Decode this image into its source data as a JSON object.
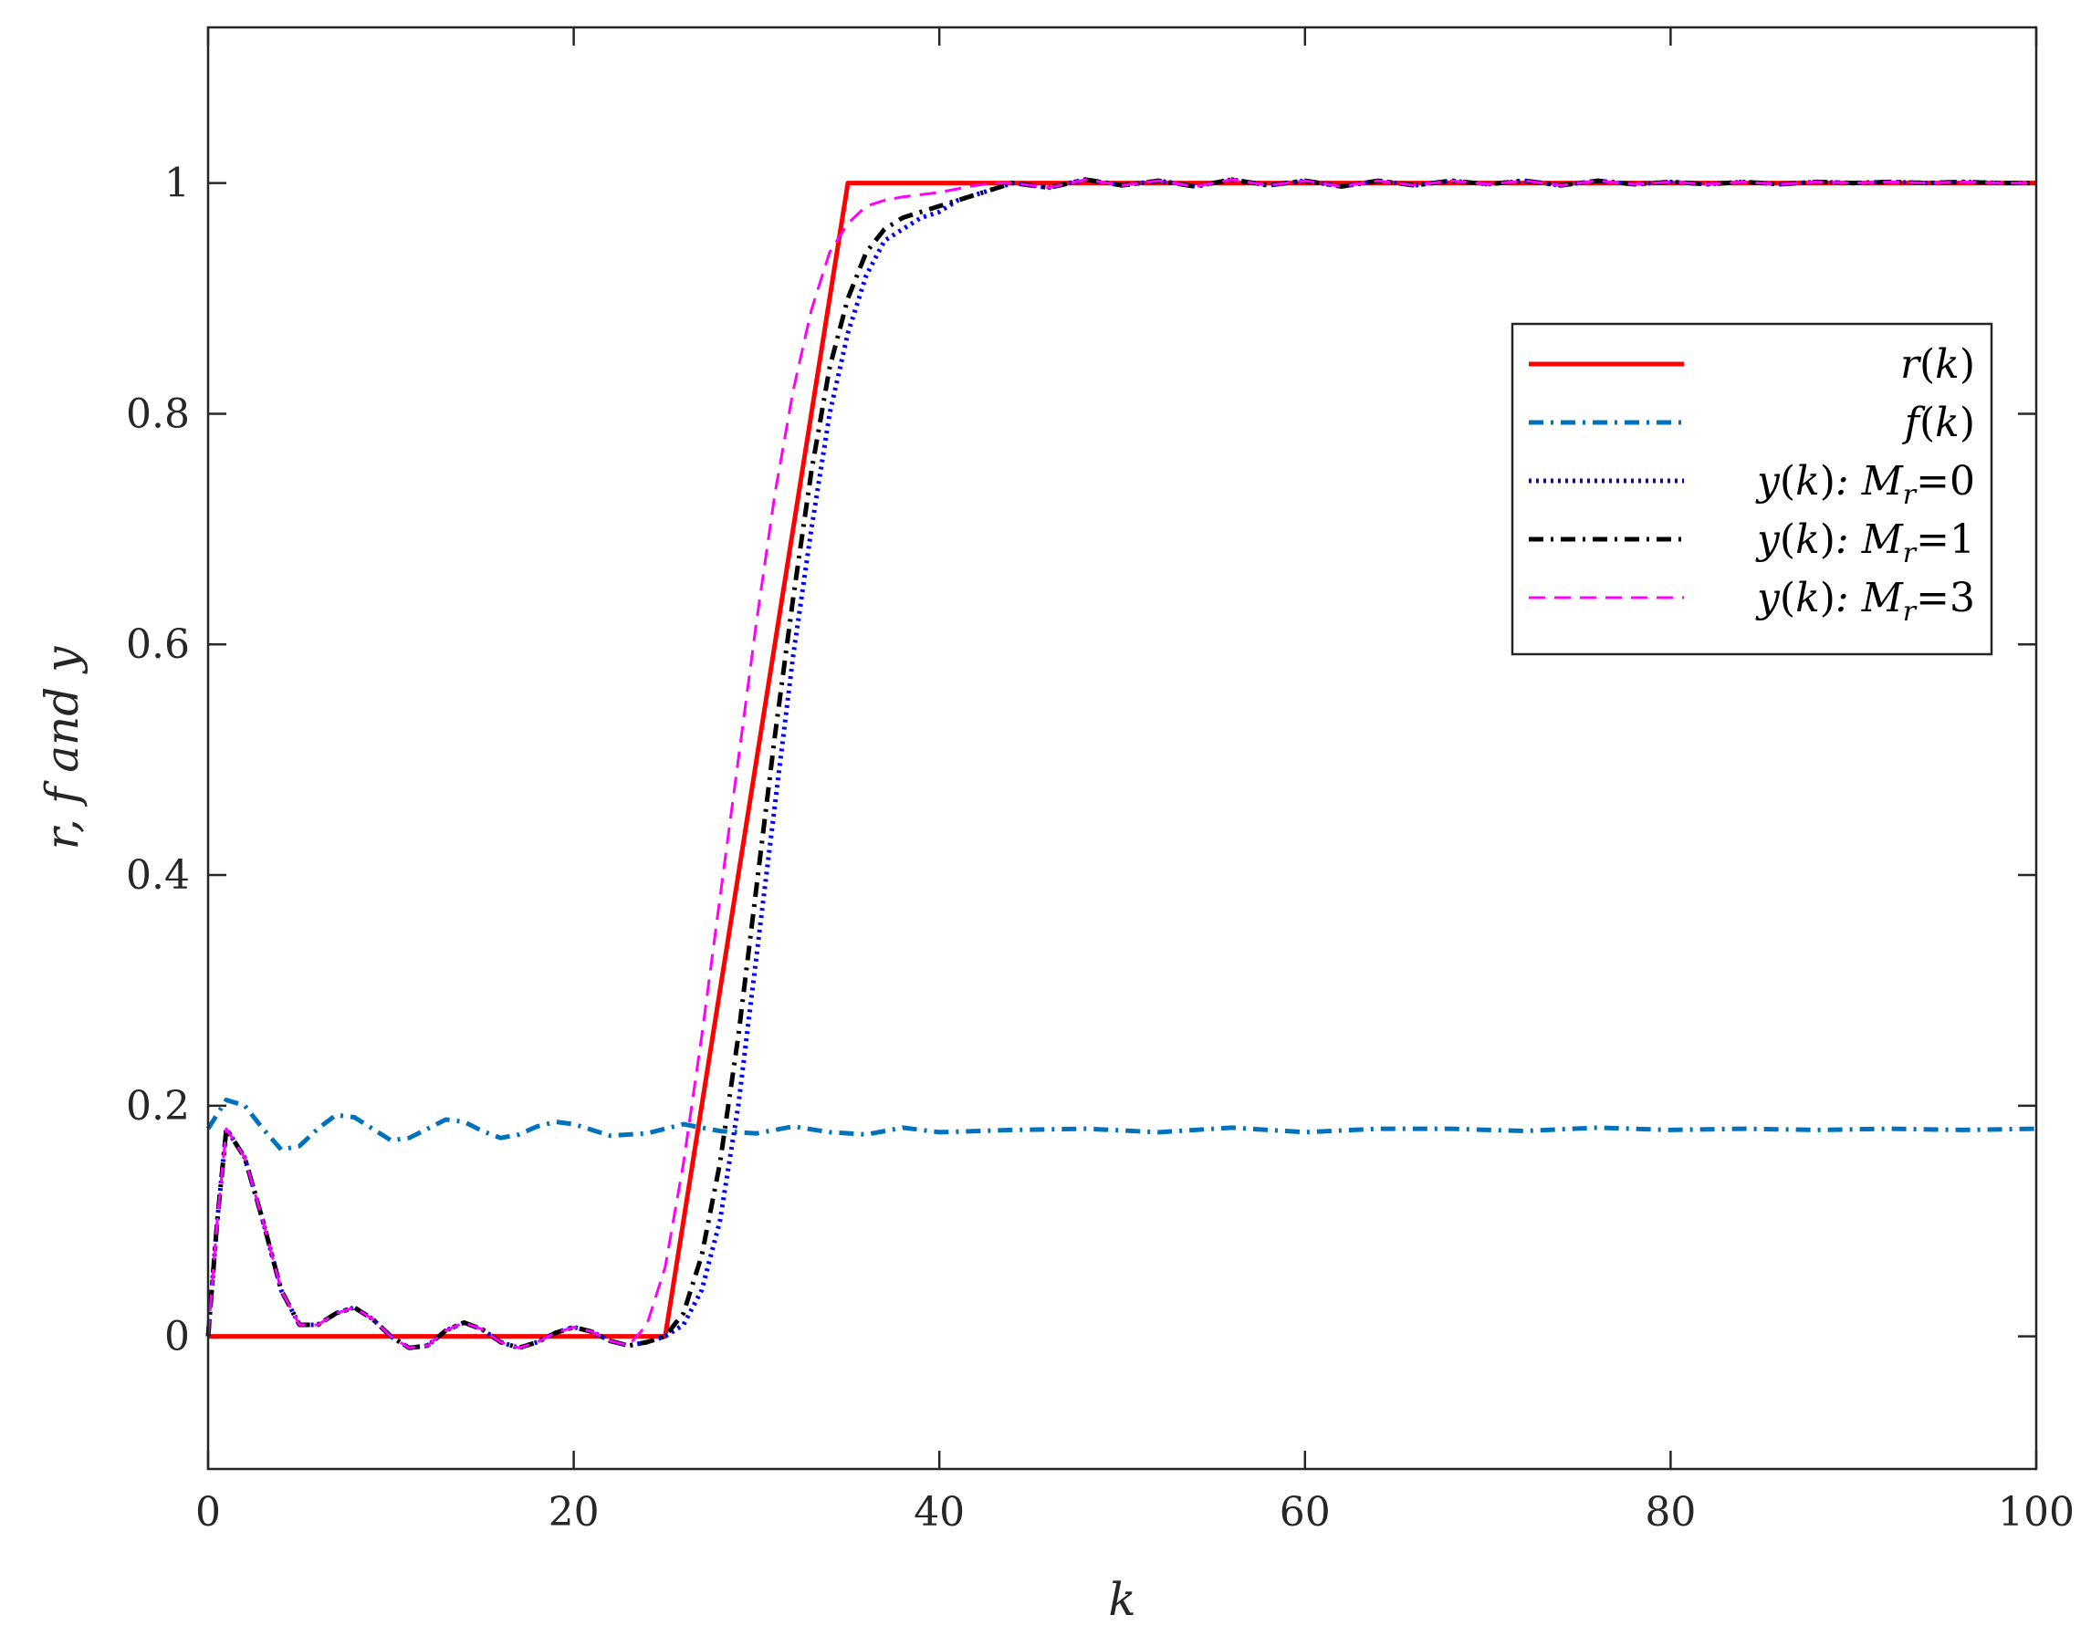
{
  "chart_data": {
    "type": "line",
    "xlabel": "k",
    "ylabel": "r, f and y",
    "xlim": [
      0,
      100
    ],
    "ylim": [
      -0.115,
      1.135
    ],
    "x_ticks": [
      0,
      20,
      40,
      60,
      80,
      100
    ],
    "y_ticks": [
      0,
      0.2,
      0.4,
      0.6,
      0.8,
      1
    ],
    "x_tick_labels": [
      "0",
      "20",
      "40",
      "60",
      "80",
      "100"
    ],
    "y_tick_labels": [
      "0",
      "0.2",
      "0.4",
      "0.6",
      "0.8",
      "1"
    ],
    "grid": false,
    "legend_position": "top-right",
    "series": [
      {
        "name": "r(k)",
        "color": "#ff0000",
        "style": "solid",
        "x": [
          0,
          25,
          35,
          100
        ],
        "y": [
          0,
          0,
          1,
          1
        ]
      },
      {
        "name": "f(k)",
        "color": "#0072bd",
        "style": "dashdot",
        "x": [
          0,
          1,
          2,
          3,
          4,
          5,
          6,
          7,
          8,
          9,
          10,
          11,
          12,
          13,
          14,
          15,
          16,
          17,
          18,
          19,
          20,
          22,
          24,
          26,
          28,
          30,
          32,
          34,
          36,
          38,
          40,
          44,
          48,
          52,
          56,
          60,
          64,
          68,
          72,
          76,
          80,
          84,
          88,
          92,
          96,
          100
        ],
        "y": [
          0.18,
          0.205,
          0.2,
          0.18,
          0.162,
          0.165,
          0.18,
          0.192,
          0.19,
          0.18,
          0.17,
          0.172,
          0.18,
          0.188,
          0.186,
          0.178,
          0.172,
          0.175,
          0.182,
          0.186,
          0.184,
          0.174,
          0.176,
          0.184,
          0.178,
          0.176,
          0.182,
          0.177,
          0.175,
          0.181,
          0.177,
          0.179,
          0.18,
          0.177,
          0.181,
          0.177,
          0.18,
          0.18,
          0.178,
          0.181,
          0.179,
          0.18,
          0.179,
          0.18,
          0.179,
          0.18
        ]
      },
      {
        "name": "y(k): M_r=0",
        "color": "#0000ff",
        "style": "dotted",
        "x": [
          0,
          0.5,
          1,
          2,
          3,
          4,
          5,
          6,
          7,
          8,
          9,
          10,
          11,
          12,
          13,
          14,
          15,
          16,
          17,
          18,
          19,
          20,
          21,
          22,
          23,
          24,
          25,
          26,
          27,
          28,
          29,
          30,
          31,
          32,
          33,
          34,
          35,
          36,
          37,
          38,
          39,
          40,
          41,
          42,
          43,
          44,
          46,
          48,
          50,
          52,
          54,
          56,
          58,
          60,
          62,
          64,
          66,
          68,
          70,
          72,
          74,
          76,
          78,
          80,
          82,
          84,
          86,
          88,
          90,
          92,
          94,
          96,
          98,
          100
        ],
        "y": [
          0,
          0.1,
          0.18,
          0.155,
          0.1,
          0.04,
          0.01,
          0.01,
          0.02,
          0.025,
          0.015,
          0.0,
          -0.01,
          -0.008,
          0.005,
          0.012,
          0.006,
          -0.005,
          -0.01,
          -0.005,
          0.003,
          0.008,
          0.004,
          -0.004,
          -0.008,
          -0.005,
          0.0,
          0.01,
          0.04,
          0.1,
          0.2,
          0.33,
          0.46,
          0.59,
          0.7,
          0.8,
          0.87,
          0.92,
          0.95,
          0.96,
          0.97,
          0.975,
          0.985,
          0.99,
          0.995,
          1.0,
          0.996,
          1.003,
          0.998,
          1.002,
          0.997,
          1.003,
          0.998,
          1.002,
          0.997,
          1.002,
          0.998,
          1.002,
          0.999,
          1.002,
          0.998,
          1.002,
          0.999,
          1.001,
          0.999,
          1.001,
          0.999,
          1.001,
          1.0,
          1.001,
          1.0,
          1.001,
          1.0,
          1.0
        ]
      },
      {
        "name": "y(k): M_r=1",
        "color": "#000000",
        "style": "dashdot",
        "x": [
          0,
          0.5,
          1,
          2,
          3,
          4,
          5,
          6,
          7,
          8,
          9,
          10,
          11,
          12,
          13,
          14,
          15,
          16,
          17,
          18,
          19,
          20,
          21,
          22,
          23,
          24,
          25,
          26,
          27,
          28,
          29,
          30,
          31,
          32,
          33,
          34,
          35,
          36,
          37,
          38,
          39,
          40,
          41,
          42,
          43,
          44,
          46,
          48,
          50,
          52,
          54,
          56,
          58,
          60,
          62,
          64,
          66,
          68,
          70,
          72,
          74,
          76,
          78,
          80,
          82,
          84,
          86,
          88,
          90,
          92,
          94,
          96,
          98,
          100
        ],
        "y": [
          0,
          0.1,
          0.18,
          0.155,
          0.1,
          0.04,
          0.01,
          0.01,
          0.02,
          0.025,
          0.015,
          0.0,
          -0.01,
          -0.008,
          0.005,
          0.012,
          0.006,
          -0.005,
          -0.01,
          -0.005,
          0.003,
          0.008,
          0.004,
          -0.004,
          -0.008,
          -0.005,
          0.0,
          0.02,
          0.07,
          0.15,
          0.26,
          0.39,
          0.52,
          0.64,
          0.75,
          0.84,
          0.9,
          0.94,
          0.96,
          0.97,
          0.975,
          0.98,
          0.985,
          0.99,
          0.995,
          1.0,
          0.996,
          1.003,
          0.998,
          1.002,
          0.997,
          1.003,
          0.998,
          1.002,
          0.997,
          1.002,
          0.998,
          1.002,
          0.999,
          1.002,
          0.998,
          1.002,
          0.999,
          1.001,
          0.999,
          1.001,
          0.999,
          1.001,
          1.0,
          1.001,
          1.0,
          1.001,
          1.0,
          1.0
        ]
      },
      {
        "name": "y(k): M_r=3",
        "color": "#ff00ff",
        "style": "dashed",
        "x": [
          0,
          0.5,
          1,
          2,
          3,
          4,
          5,
          6,
          7,
          8,
          9,
          10,
          11,
          12,
          13,
          14,
          15,
          16,
          17,
          18,
          19,
          20,
          21,
          22,
          23,
          24,
          25,
          26,
          27,
          28,
          29,
          30,
          31,
          32,
          33,
          34,
          35,
          36,
          37,
          38,
          39,
          40,
          41,
          42,
          43,
          44,
          46,
          48,
          50,
          52,
          54,
          56,
          58,
          60,
          62,
          64,
          66,
          68,
          70,
          72,
          74,
          76,
          78,
          80,
          82,
          84,
          86,
          88,
          90,
          92,
          94,
          96,
          98,
          100
        ],
        "y": [
          0,
          0.1,
          0.18,
          0.155,
          0.1,
          0.04,
          0.01,
          0.01,
          0.02,
          0.025,
          0.015,
          0.0,
          -0.01,
          -0.008,
          0.005,
          0.012,
          0.006,
          -0.005,
          -0.01,
          -0.005,
          0.003,
          0.008,
          0.004,
          -0.004,
          -0.008,
          0.01,
          0.06,
          0.15,
          0.26,
          0.38,
          0.5,
          0.62,
          0.73,
          0.82,
          0.89,
          0.94,
          0.965,
          0.98,
          0.985,
          0.988,
          0.99,
          0.992,
          0.995,
          0.998,
          1.0,
          1.0,
          0.996,
          1.003,
          0.998,
          1.002,
          0.997,
          1.003,
          0.998,
          1.002,
          0.997,
          1.002,
          0.998,
          1.002,
          0.999,
          1.002,
          0.998,
          1.002,
          0.999,
          1.001,
          0.999,
          1.001,
          0.999,
          1.001,
          1.0,
          1.001,
          1.0,
          1.001,
          1.0,
          1.0
        ]
      }
    ],
    "legend": [
      {
        "func": "r",
        "arg": "k",
        "suffix": "",
        "sub": "",
        "value": ""
      },
      {
        "func": "f",
        "arg": "k",
        "suffix": "",
        "sub": "",
        "value": ""
      },
      {
        "func": "y",
        "arg": "k",
        "suffix": ":  M",
        "sub": "r",
        "value": "=0"
      },
      {
        "func": "y",
        "arg": "k",
        "suffix": ":  M",
        "sub": "r",
        "value": "=1"
      },
      {
        "func": "y",
        "arg": "k",
        "suffix": ":  M",
        "sub": "r",
        "value": "=3"
      }
    ]
  }
}
